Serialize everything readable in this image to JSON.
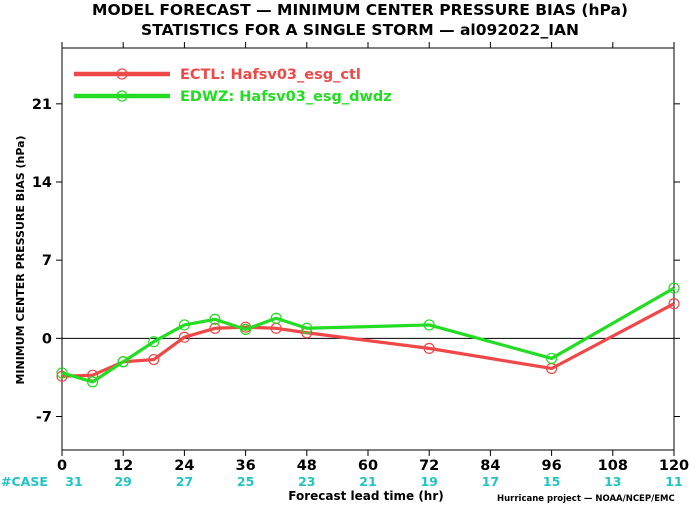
{
  "chart_data": {
    "type": "line",
    "title": "MODEL FORECAST — MINIMUM CENTER PRESSURE BIAS (hPa)",
    "subtitle": "STATISTICS FOR A SINGLE STORM — al092022_IAN",
    "ylabel": "MINIMUM CENTER PRESSURE BIAS (hPa)",
    "xlabel": "Forecast lead time (hr)",
    "credit": "Hurricane project — NOAA/NCEP/EMC",
    "xlim": [
      0,
      120
    ],
    "ylim": [
      -10,
      26
    ],
    "xticks": [
      0,
      12,
      24,
      36,
      48,
      60,
      72,
      84,
      96,
      108,
      120
    ],
    "yticks": [
      -7,
      0,
      7,
      14,
      21
    ],
    "grid": false,
    "zero_line": true,
    "legend_position": "top-left",
    "case_label": "#CASE",
    "case_counts": [
      {
        "x": 0,
        "n": "31"
      },
      {
        "x": 12,
        "n": "29"
      },
      {
        "x": 24,
        "n": "27"
      },
      {
        "x": 36,
        "n": "25"
      },
      {
        "x": 48,
        "n": "23"
      },
      {
        "x": 60,
        "n": "21"
      },
      {
        "x": 72,
        "n": "19"
      },
      {
        "x": 84,
        "n": "17"
      },
      {
        "x": 96,
        "n": "15"
      },
      {
        "x": 108,
        "n": "13"
      },
      {
        "x": 120,
        "n": "11"
      }
    ],
    "series": [
      {
        "name": "ECTL: Hafsv03_esg_ctl",
        "color": "#f04848",
        "x": [
          0,
          6,
          12,
          18,
          24,
          30,
          36,
          42,
          48,
          72,
          96,
          120
        ],
        "y": [
          -3.4,
          -3.3,
          -2.1,
          -1.9,
          0.1,
          0.9,
          1.0,
          0.9,
          0.5,
          -0.9,
          -2.7,
          3.1
        ]
      },
      {
        "name": "EDWZ: Hafsv03_esg_dwdz",
        "color": "#22dd22",
        "x": [
          0,
          6,
          12,
          18,
          24,
          30,
          36,
          42,
          48,
          72,
          96,
          120
        ],
        "y": [
          -3.1,
          -3.9,
          -2.1,
          -0.3,
          1.2,
          1.7,
          0.8,
          1.8,
          0.9,
          1.2,
          -1.8,
          4.5
        ]
      }
    ]
  }
}
